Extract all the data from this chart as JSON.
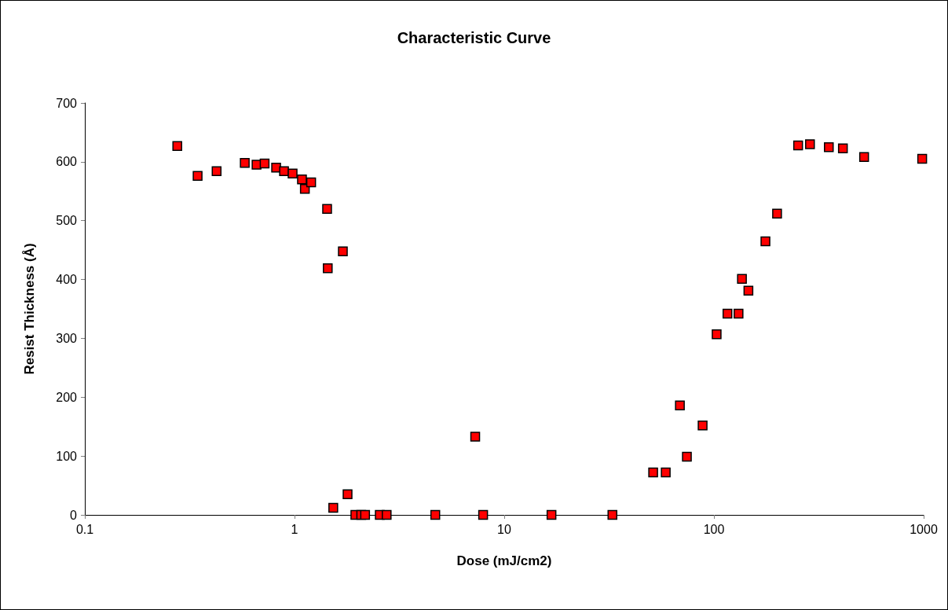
{
  "chart_data": {
    "type": "scatter",
    "title": "Characteristic Curve",
    "xlabel": "Dose (mJ/cm2)",
    "ylabel": "Resist Thickness (Å)",
    "log": "x",
    "marker": "square",
    "xlim": [
      0.1,
      1000
    ],
    "xticks": [
      0.1,
      1,
      10,
      100,
      1000
    ],
    "ylim": [
      0,
      700
    ],
    "yticks": [
      0,
      100,
      200,
      300,
      400,
      500,
      600,
      700
    ],
    "series": [
      {
        "color": "#ff0000",
        "x": [
          0.276,
          0.345,
          0.425,
          0.579,
          0.659,
          0.72,
          0.817,
          0.891,
          0.979,
          1.085,
          1.12,
          1.2,
          1.43,
          1.44,
          1.7,
          1.53,
          1.79,
          1.95,
          2.08,
          2.17,
          2.55,
          2.75,
          4.69,
          7.27,
          7.93,
          16.8,
          32.8,
          51.3,
          58.9,
          68.8,
          74.3,
          88.3,
          103,
          116,
          131,
          136,
          146,
          176,
          200,
          252,
          287,
          353,
          412,
          520,
          984
        ],
        "values": [
          627,
          576,
          584,
          598,
          595,
          597,
          590,
          584,
          580,
          570,
          554,
          565,
          520,
          419,
          448,
          12,
          35,
          0,
          0,
          0,
          0,
          0,
          0,
          133,
          0,
          0,
          0,
          72,
          72,
          186,
          99,
          152,
          307,
          342,
          342,
          401,
          381,
          465,
          512,
          628,
          630,
          625,
          623,
          608,
          605
        ]
      }
    ]
  }
}
